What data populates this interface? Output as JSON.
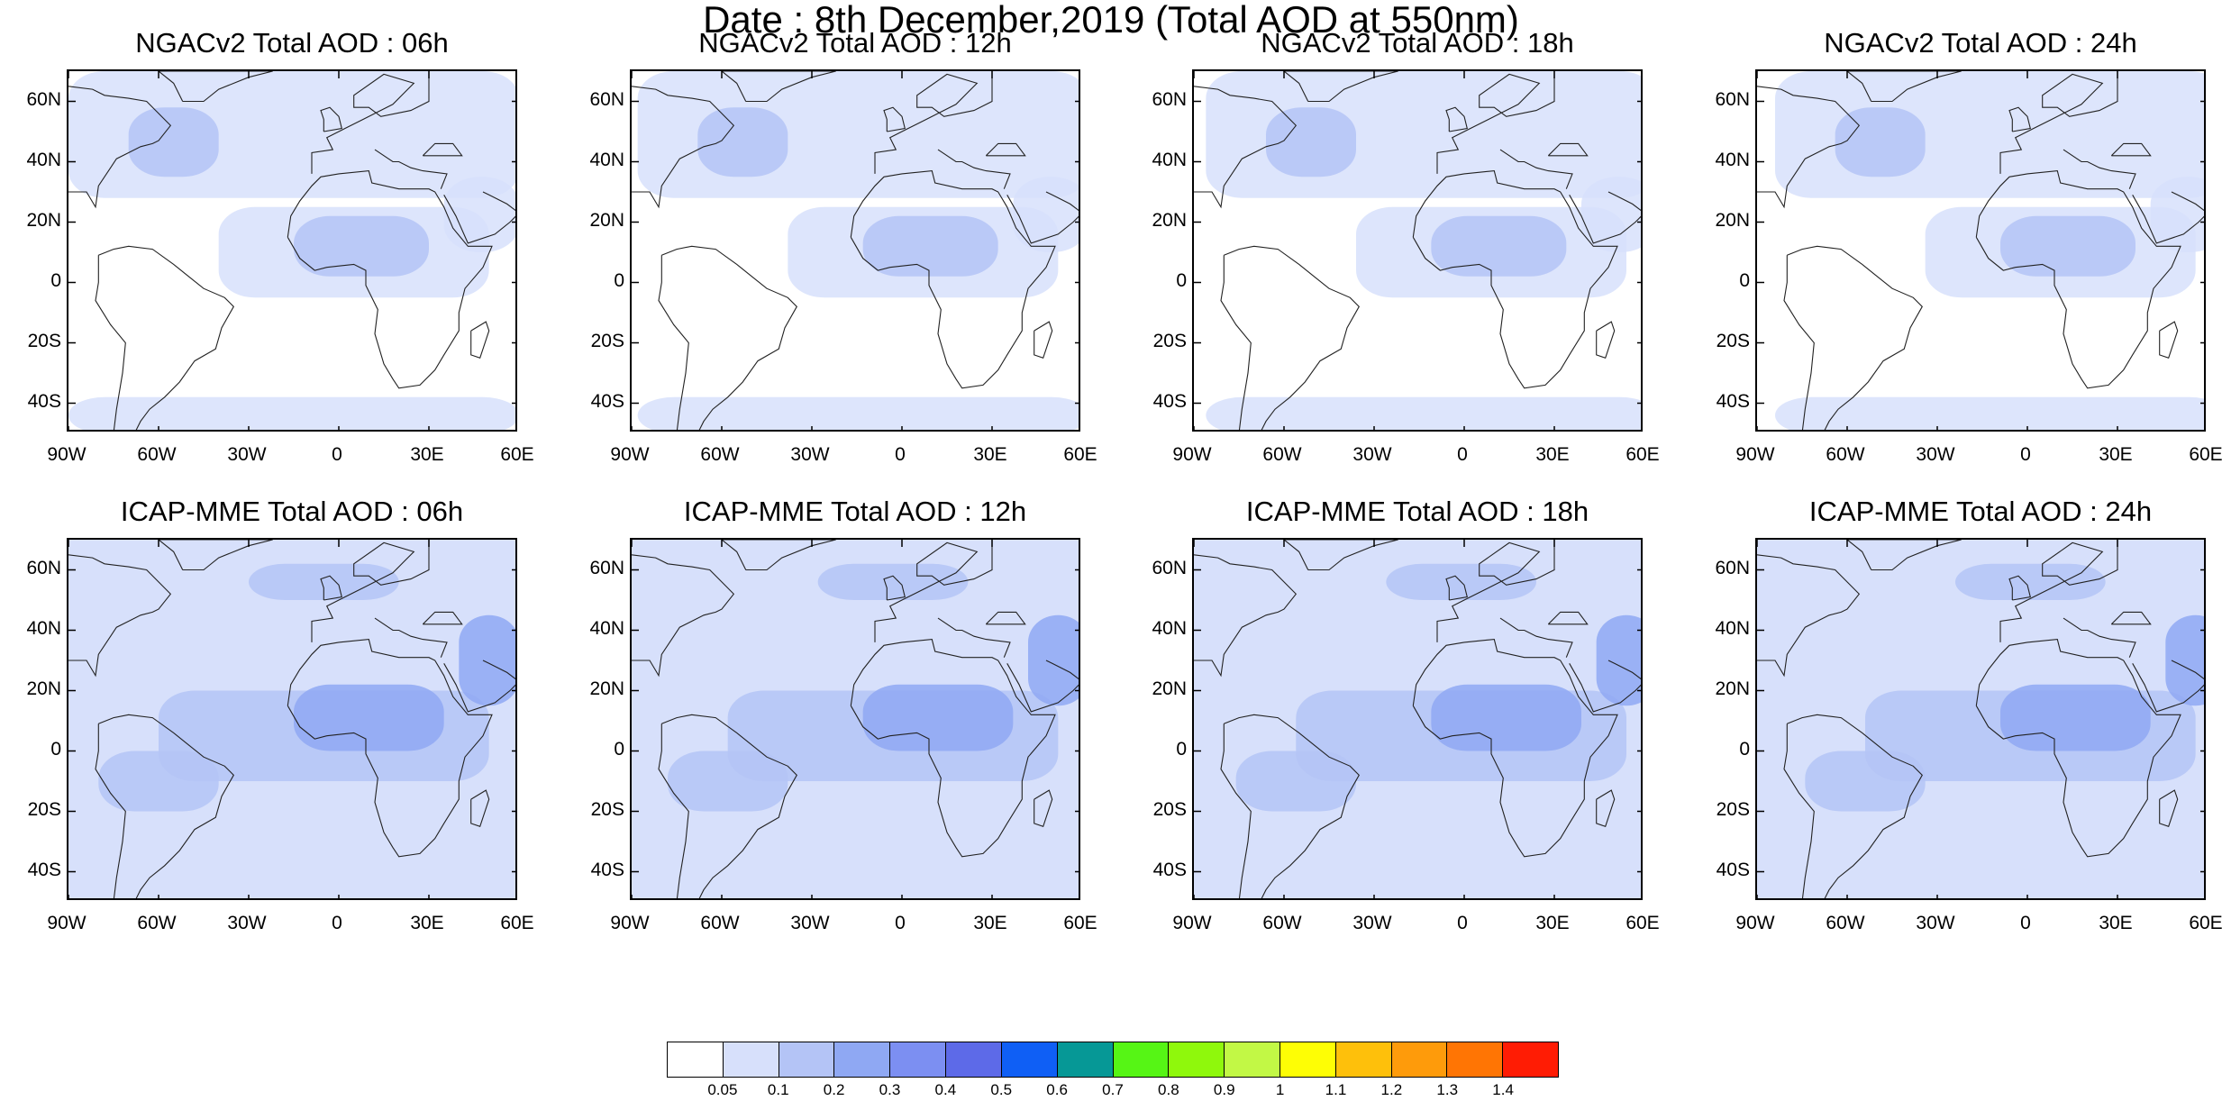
{
  "title": "Date : 8th December,2019 (Total AOD at 550nm)",
  "panels": [
    {
      "id": "ngac-06",
      "title": "NGACv2 Total AOD : 06h",
      "model": "ngac",
      "hour": 6
    },
    {
      "id": "ngac-12",
      "title": "NGACv2 Total AOD : 12h",
      "model": "ngac",
      "hour": 12
    },
    {
      "id": "ngac-18",
      "title": "NGACv2 Total AOD : 18h",
      "model": "ngac",
      "hour": 18
    },
    {
      "id": "ngac-24",
      "title": "NGACv2 Total AOD : 24h",
      "model": "ngac",
      "hour": 24
    },
    {
      "id": "icap-06",
      "title": "ICAP-MME Total AOD : 06h",
      "model": "icap",
      "hour": 6
    },
    {
      "id": "icap-12",
      "title": "ICAP-MME Total AOD : 12h",
      "model": "icap",
      "hour": 12
    },
    {
      "id": "icap-18",
      "title": "ICAP-MME Total AOD : 18h",
      "model": "icap",
      "hour": 18
    },
    {
      "id": "icap-24",
      "title": "ICAP-MME Total AOD : 24h",
      "model": "icap",
      "hour": 24
    }
  ],
  "axes": {
    "lat_labels": [
      "60N",
      "40N",
      "20N",
      "0",
      "20S",
      "40S"
    ],
    "lat_values": [
      60,
      40,
      20,
      0,
      -20,
      -40
    ],
    "lon_labels": [
      "90W",
      "60W",
      "30W",
      "0",
      "30E",
      "60E"
    ],
    "lon_values": [
      -90,
      -60,
      -30,
      0,
      30,
      60
    ],
    "lat_range": [
      -50,
      70
    ],
    "lon_range": [
      -90,
      60
    ]
  },
  "legend": {
    "colors": [
      "#ffffff",
      "#d7e0fb",
      "#b4c4f6",
      "#8fa8f3",
      "#7c8ff2",
      "#5d6ae8",
      "#0f5ff5",
      "#069896",
      "#56f515",
      "#8ff80c",
      "#c2f845",
      "#fefe05",
      "#fec00b",
      "#fe9b0b",
      "#ff7504",
      "#ff1c04"
    ],
    "labels": [
      "0.05",
      "0.1",
      "0.2",
      "0.3",
      "0.4",
      "0.5",
      "0.6",
      "0.7",
      "0.8",
      "0.9",
      "1",
      "1.1",
      "1.2",
      "1.3",
      "1.4"
    ]
  },
  "regions": {
    "ngac": [
      {
        "name": "background-low-aod",
        "lon": [
          -90,
          60
        ],
        "lat": [
          -50,
          70
        ],
        "level": 0
      },
      {
        "name": "north-atlantic-plume",
        "lon": [
          -90,
          60
        ],
        "lat": [
          28,
          70
        ],
        "level": 1
      },
      {
        "name": "storm-low-atlantic",
        "lon": [
          -70,
          -40
        ],
        "lat": [
          35,
          58
        ],
        "level": 2
      },
      {
        "name": "sahel-band",
        "lon": [
          -40,
          50
        ],
        "lat": [
          -5,
          25
        ],
        "level": 1
      },
      {
        "name": "west-africa-dust",
        "lon": [
          -15,
          30
        ],
        "lat": [
          2,
          22
        ],
        "level": 2
      },
      {
        "name": "southern-ocean-band",
        "lon": [
          -90,
          60
        ],
        "lat": [
          -50,
          -38
        ],
        "level": 1
      },
      {
        "name": "arabian-dust",
        "lon": [
          35,
          60
        ],
        "lat": [
          10,
          35
        ],
        "level": 1
      }
    ],
    "icap": [
      {
        "name": "background-moderate-aod",
        "lon": [
          -90,
          60
        ],
        "lat": [
          -50,
          70
        ],
        "level": 1
      },
      {
        "name": "tropical-atlantic",
        "lon": [
          -60,
          50
        ],
        "lat": [
          -10,
          20
        ],
        "level": 2
      },
      {
        "name": "west-africa-dust",
        "lon": [
          -15,
          35
        ],
        "lat": [
          0,
          22
        ],
        "level": 3
      },
      {
        "name": "middle-east-dust",
        "lon": [
          40,
          60
        ],
        "lat": [
          15,
          45
        ],
        "level": 3
      },
      {
        "name": "europe-plume",
        "lon": [
          -30,
          20
        ],
        "lat": [
          50,
          62
        ],
        "level": 2
      },
      {
        "name": "amazon-smoke",
        "lon": [
          -80,
          -40
        ],
        "lat": [
          -20,
          0
        ],
        "level": 2
      }
    ]
  }
}
